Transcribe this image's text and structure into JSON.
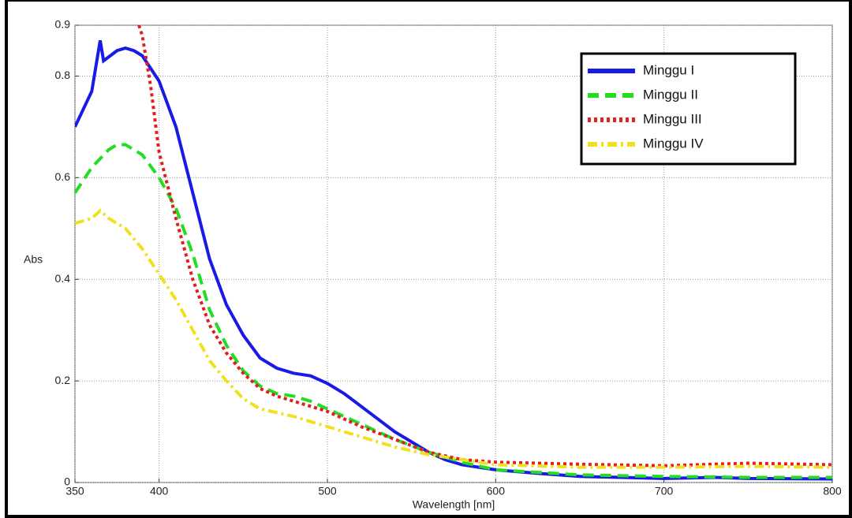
{
  "chart_data": {
    "type": "line",
    "xlabel": "Wavelength [nm]",
    "ylabel": "Abs",
    "xlim": [
      350,
      800
    ],
    "ylim": [
      0,
      0.9
    ],
    "xticks": [
      350,
      400,
      500,
      600,
      700,
      800
    ],
    "yticks": [
      0,
      0.2,
      0.4,
      0.6,
      0.8,
      0.9
    ],
    "grid": true,
    "legend": "upper right",
    "series": [
      {
        "name": "Minggu I",
        "color": "#1a1ae6",
        "style": "solid",
        "x": [
          350,
          360,
          365,
          367,
          375,
          380,
          385,
          390,
          400,
          410,
          420,
          430,
          440,
          450,
          460,
          470,
          480,
          490,
          500,
          510,
          520,
          530,
          540,
          550,
          560,
          570,
          580,
          600,
          625,
          650,
          700,
          730,
          750,
          800
        ],
        "values": [
          0.7,
          0.77,
          0.87,
          0.83,
          0.85,
          0.855,
          0.85,
          0.84,
          0.79,
          0.7,
          0.57,
          0.44,
          0.35,
          0.29,
          0.245,
          0.225,
          0.215,
          0.21,
          0.195,
          0.175,
          0.15,
          0.125,
          0.1,
          0.08,
          0.06,
          0.045,
          0.035,
          0.025,
          0.018,
          0.012,
          0.008,
          0.01,
          0.008,
          0.007
        ]
      },
      {
        "name": "Minggu II",
        "color": "#22dd22",
        "style": "dashed",
        "x": [
          350,
          360,
          370,
          375,
          380,
          390,
          400,
          410,
          420,
          430,
          440,
          450,
          460,
          470,
          480,
          490,
          500,
          520,
          540,
          560,
          580,
          600,
          650,
          700,
          750,
          800
        ],
        "values": [
          0.57,
          0.62,
          0.655,
          0.665,
          0.665,
          0.645,
          0.6,
          0.54,
          0.45,
          0.34,
          0.27,
          0.22,
          0.19,
          0.175,
          0.17,
          0.16,
          0.145,
          0.115,
          0.085,
          0.06,
          0.04,
          0.025,
          0.015,
          0.012,
          0.01,
          0.01
        ]
      },
      {
        "name": "Minggu III",
        "color": "#e02020",
        "style": "dotted",
        "x": [
          388,
          390,
          395,
          400,
          410,
          420,
          430,
          440,
          450,
          460,
          470,
          480,
          500,
          520,
          540,
          560,
          580,
          600,
          650,
          700,
          730,
          750,
          800
        ],
        "values": [
          0.9,
          0.88,
          0.78,
          0.65,
          0.52,
          0.4,
          0.31,
          0.255,
          0.215,
          0.185,
          0.17,
          0.16,
          0.14,
          0.11,
          0.085,
          0.06,
          0.045,
          0.04,
          0.036,
          0.033,
          0.036,
          0.038,
          0.035
        ]
      },
      {
        "name": "Minggu IV",
        "color": "#f0e020",
        "style": "dashdot",
        "x": [
          350,
          360,
          365,
          370,
          380,
          390,
          400,
          410,
          420,
          430,
          440,
          450,
          460,
          480,
          500,
          520,
          540,
          560,
          580,
          600,
          650,
          700,
          750,
          800
        ],
        "values": [
          0.51,
          0.52,
          0.535,
          0.52,
          0.5,
          0.46,
          0.41,
          0.36,
          0.3,
          0.24,
          0.2,
          0.165,
          0.145,
          0.13,
          0.11,
          0.09,
          0.07,
          0.055,
          0.045,
          0.035,
          0.03,
          0.03,
          0.032,
          0.03
        ]
      }
    ]
  }
}
